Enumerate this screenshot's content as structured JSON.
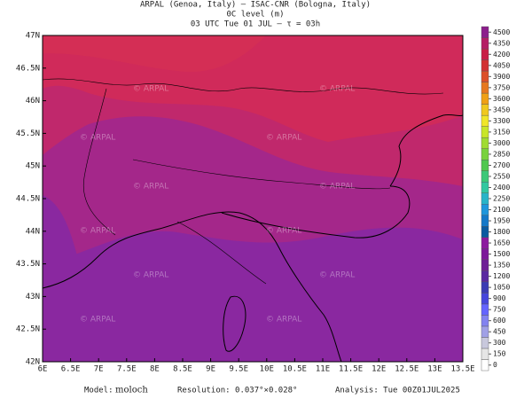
{
  "header": {
    "line1": "ARPAL (Genoa, Italy)   –   ISAC-CNR (Bologna, Italy)",
    "line2": "0C level (m)",
    "line3": "03 UTC Tue 01 JUL   –   τ = 03h"
  },
  "watermark": "© ARPAL",
  "map": {
    "xlim": [
      6,
      13.5
    ],
    "ylim": [
      42,
      47
    ],
    "xticks": [
      {
        "value": 6,
        "label": "6E"
      },
      {
        "value": 6.5,
        "label": "6.5E"
      },
      {
        "value": 7,
        "label": "7E"
      },
      {
        "value": 7.5,
        "label": "7.5E"
      },
      {
        "value": 8,
        "label": "8E"
      },
      {
        "value": 8.5,
        "label": "8.5E"
      },
      {
        "value": 9,
        "label": "9E"
      },
      {
        "value": 9.5,
        "label": "9.5E"
      },
      {
        "value": 10,
        "label": "10E"
      },
      {
        "value": 10.5,
        "label": "10.5E"
      },
      {
        "value": 11,
        "label": "11E"
      },
      {
        "value": 11.5,
        "label": "11.5E"
      },
      {
        "value": 12,
        "label": "12E"
      },
      {
        "value": 12.5,
        "label": "12.5E"
      },
      {
        "value": 13,
        "label": "13E"
      },
      {
        "value": 13.5,
        "label": "13.5E"
      }
    ],
    "yticks": [
      {
        "value": 42,
        "label": "42N"
      },
      {
        "value": 42.5,
        "label": "42.5N"
      },
      {
        "value": 43,
        "label": "43N"
      },
      {
        "value": 43.5,
        "label": "43.5N"
      },
      {
        "value": 44,
        "label": "44N"
      },
      {
        "value": 44.5,
        "label": "44.5N"
      },
      {
        "value": 45,
        "label": "45N"
      },
      {
        "value": 45.5,
        "label": "45.5N"
      },
      {
        "value": 46,
        "label": "46N"
      },
      {
        "value": 46.5,
        "label": "46.5N"
      },
      {
        "value": 47,
        "label": "47N"
      }
    ]
  },
  "colorbar": {
    "levels": [
      0,
      150,
      300,
      450,
      600,
      750,
      900,
      1050,
      1200,
      1350,
      1500,
      1650,
      1800,
      1950,
      2100,
      2250,
      2400,
      2550,
      2700,
      2850,
      3000,
      3150,
      3300,
      3450,
      3600,
      3750,
      3900,
      4050,
      4200,
      4350,
      4500
    ],
    "colors": [
      "#ffffff",
      "#e6e6e6",
      "#c8c8dc",
      "#a0a0e6",
      "#8282f0",
      "#6464ff",
      "#4646dc",
      "#3c3cb4",
      "#5a28a0",
      "#6e1e96",
      "#7d1a9a",
      "#8c1a9e",
      "#0a5aa0",
      "#1478c8",
      "#1e96dc",
      "#28b4c8",
      "#32c8a0",
      "#3cc878",
      "#50c850",
      "#78d23c",
      "#a0dc32",
      "#c8e628",
      "#f0e628",
      "#f0c81e",
      "#f0a014",
      "#e6781e",
      "#dc5028",
      "#d23232",
      "#c81e46",
      "#b41e64",
      "#8c1e8c"
    ]
  },
  "footer": {
    "model_label": "Model:",
    "model": "moloch",
    "resolution": "Resolution: 0.037°×0.028°",
    "analysis": "Analysis: Tue 00Z01JUL2025"
  }
}
